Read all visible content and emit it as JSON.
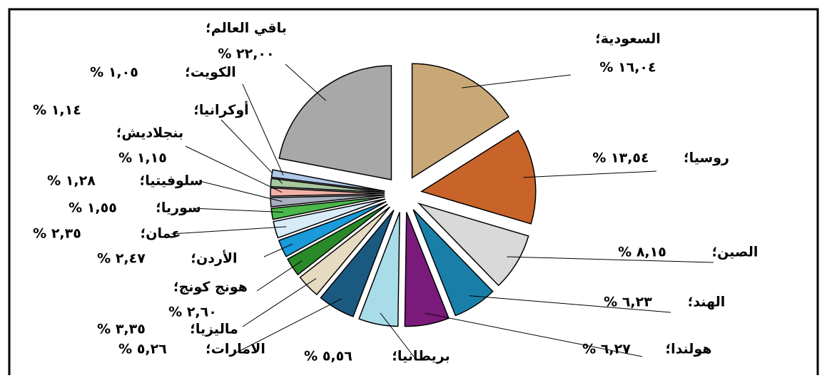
{
  "chart_data": {
    "type": "pie",
    "categories": [
      "السعودية؛",
      "روسيا؛",
      "الصين؛",
      "الهند؛",
      "هولندا؛",
      "بريطانيا؛",
      "الامارات؛",
      "ماليزيا؛",
      "هونج كونج؛",
      "الأردن؛",
      "عمان؛",
      "سوريا؛",
      "سلوفيتيا؛",
      "بنجلاديش؛",
      "أوكرانيا؛",
      "الكويت؛",
      "باقي العالم؛"
    ],
    "values": [
      16.04,
      13.54,
      8.15,
      6.23,
      6.27,
      5.56,
      5.26,
      3.35,
      2.6,
      2.47,
      2.35,
      1.55,
      1.28,
      1.15,
      1.14,
      1.05,
      22.0
    ],
    "value_labels": [
      "١٦,٠٤ %",
      "١٣,٥٤ %",
      "٨,١٥ %",
      "٦,٢٣ %",
      "٦,٢٧ %",
      "٥,٥٦ %",
      "٥,٢٦ %",
      "٣,٣٥ %",
      "٢,٦٠ %",
      "٢,٤٧ %",
      "٢,٣٥ %",
      "١,٥٥ %",
      "١,٢٨ %",
      "١,١٥ %",
      "١,١٤ %",
      "١,٠٥ %",
      "٢٢,٠٠ %"
    ],
    "colors": [
      "#c9a877",
      "#c8642a",
      "#d9d9d9",
      "#1a7fa8",
      "#7a1a7a",
      "#a8dce8",
      "#1a5a80",
      "#e6dac0",
      "#2a8a2a",
      "#1a9ad8",
      "#d8ecf8",
      "#4ab84a",
      "#a8b0c0",
      "#f0b0a8",
      "#a8c8a0",
      "#b0c8e8",
      "#a8a8a8"
    ]
  }
}
